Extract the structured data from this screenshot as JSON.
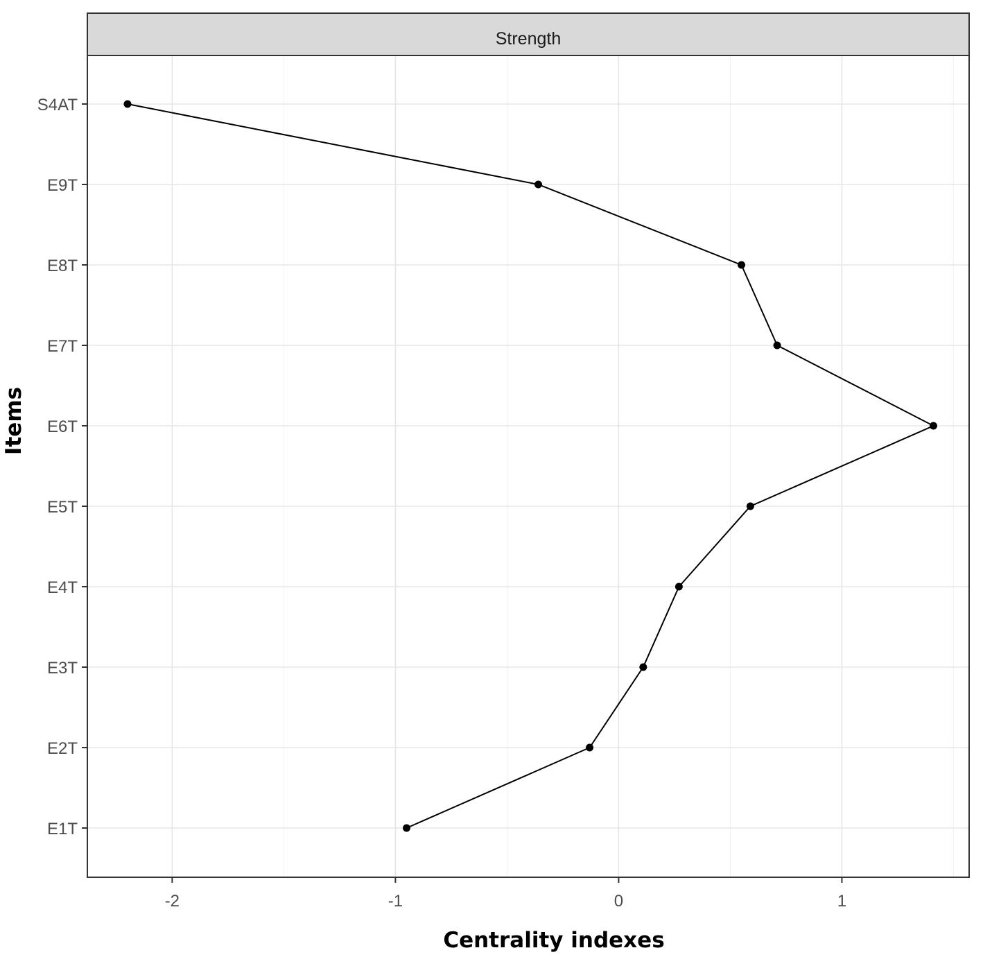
{
  "chart_data": {
    "type": "line",
    "facet_title": "Strength",
    "xlabel": "Centrality indexes",
    "ylabel": "Items",
    "xlim": [
      -2.38,
      1.57
    ],
    "x_ticks": [
      -2,
      -1,
      0,
      1
    ],
    "x_tick_labels": [
      "-2",
      "-1",
      "0",
      "1"
    ],
    "categories": [
      "E1T",
      "E2T",
      "E3T",
      "E4T",
      "E5T",
      "E6T",
      "E7T",
      "E8T",
      "E9T",
      "S4AT"
    ],
    "series": [
      {
        "values": [
          -0.95,
          -0.13,
          0.11,
          0.27,
          0.59,
          1.41,
          0.71,
          0.55,
          -0.36,
          -2.2
        ]
      }
    ],
    "grid": true,
    "legend": "none",
    "colors": {
      "line": "#000000",
      "point": "#000000",
      "strip": "#d9d9d9",
      "grid": "#e6e6e6",
      "border": "#333333"
    }
  }
}
